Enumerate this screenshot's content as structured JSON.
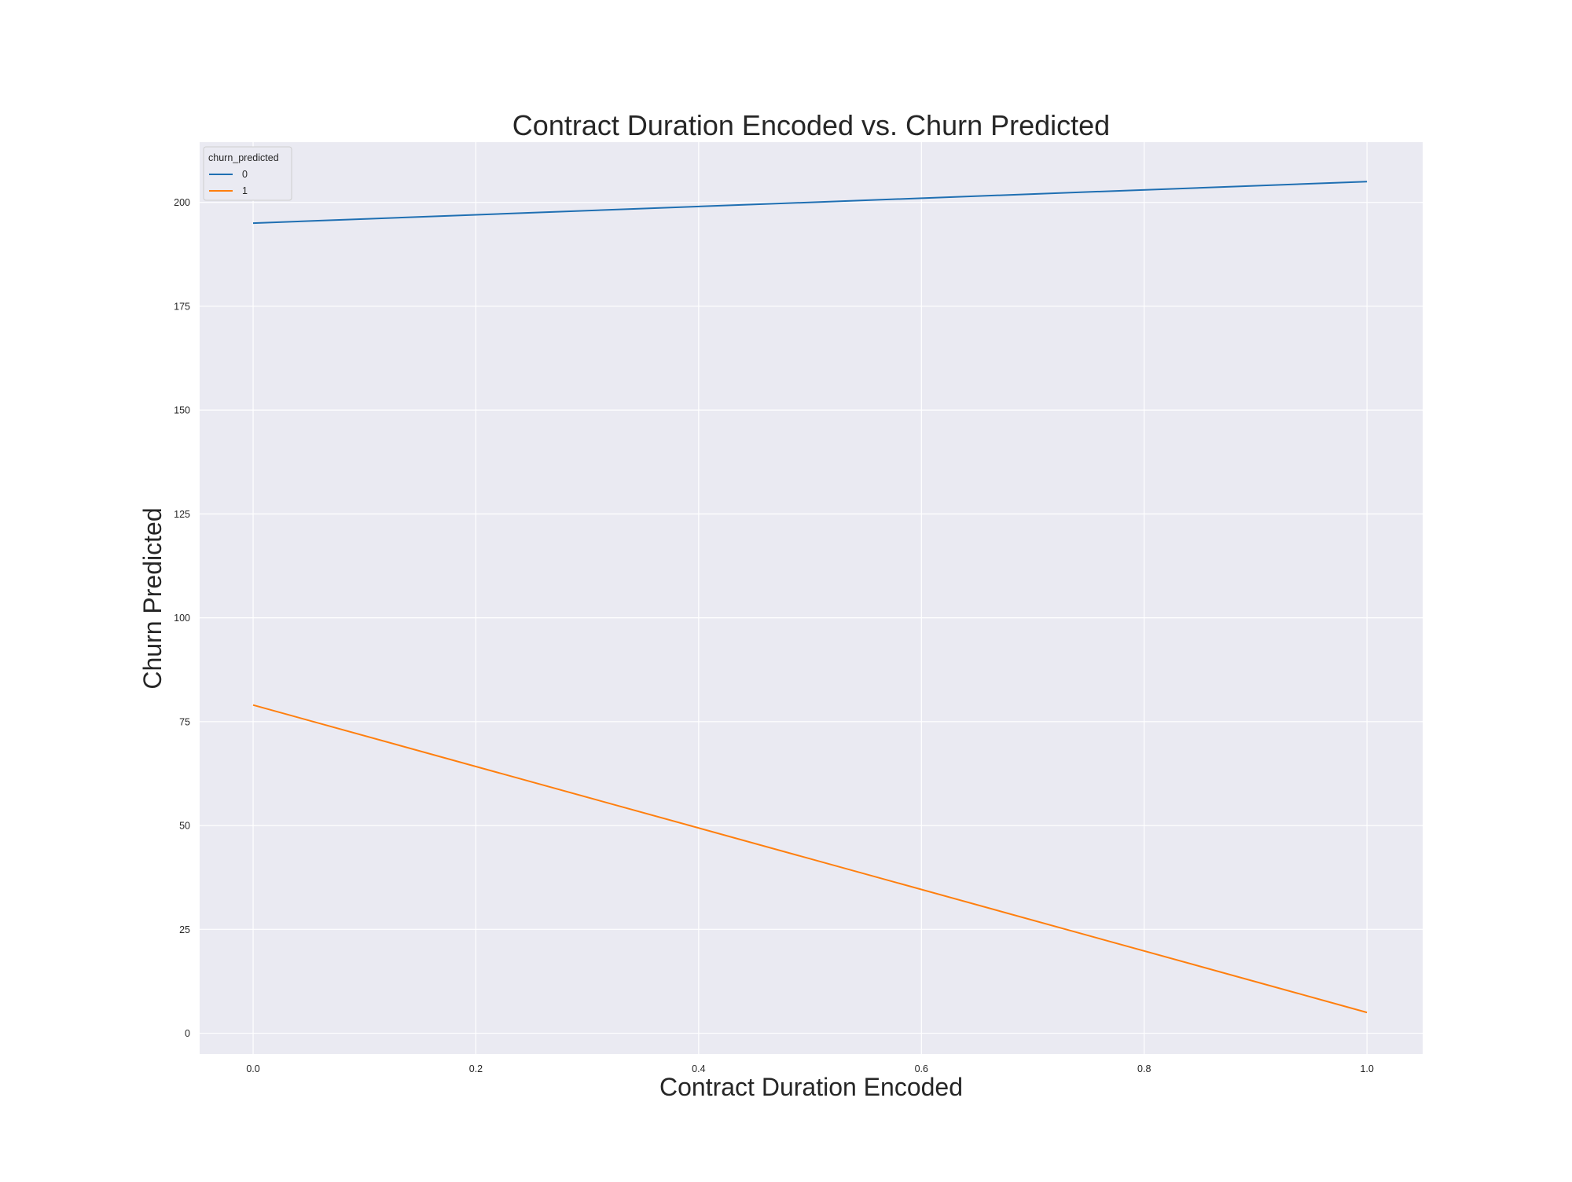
{
  "chart_data": {
    "type": "line",
    "title": "Contract Duration Encoded vs. Churn Predicted",
    "xlabel": "Contract Duration Encoded",
    "ylabel": "Churn Predicted",
    "x": [
      0.0,
      1.0
    ],
    "series": [
      {
        "name": "0",
        "values": [
          195,
          205
        ],
        "color": "#1f6fb2"
      },
      {
        "name": "1",
        "values": [
          79,
          5
        ],
        "color": "#ff7f0e"
      }
    ],
    "xlim": [
      -0.048,
      1.05
    ],
    "ylim": [
      -5,
      214.5
    ],
    "x_ticks": [
      0.0,
      0.2,
      0.4,
      0.6,
      0.8,
      1.0
    ],
    "x_tick_labels": [
      "0.0",
      "0.2",
      "0.4",
      "0.6",
      "0.8",
      "1.0"
    ],
    "y_ticks": [
      0,
      25,
      50,
      75,
      100,
      125,
      150,
      175,
      200
    ],
    "y_tick_labels": [
      "0",
      "25",
      "50",
      "75",
      "100",
      "125",
      "150",
      "175",
      "200"
    ],
    "legend": {
      "title": "churn_predicted",
      "position": "top-left"
    },
    "grid": true,
    "plot_background": "#eaeaf2",
    "grid_color": "#ffffff"
  }
}
